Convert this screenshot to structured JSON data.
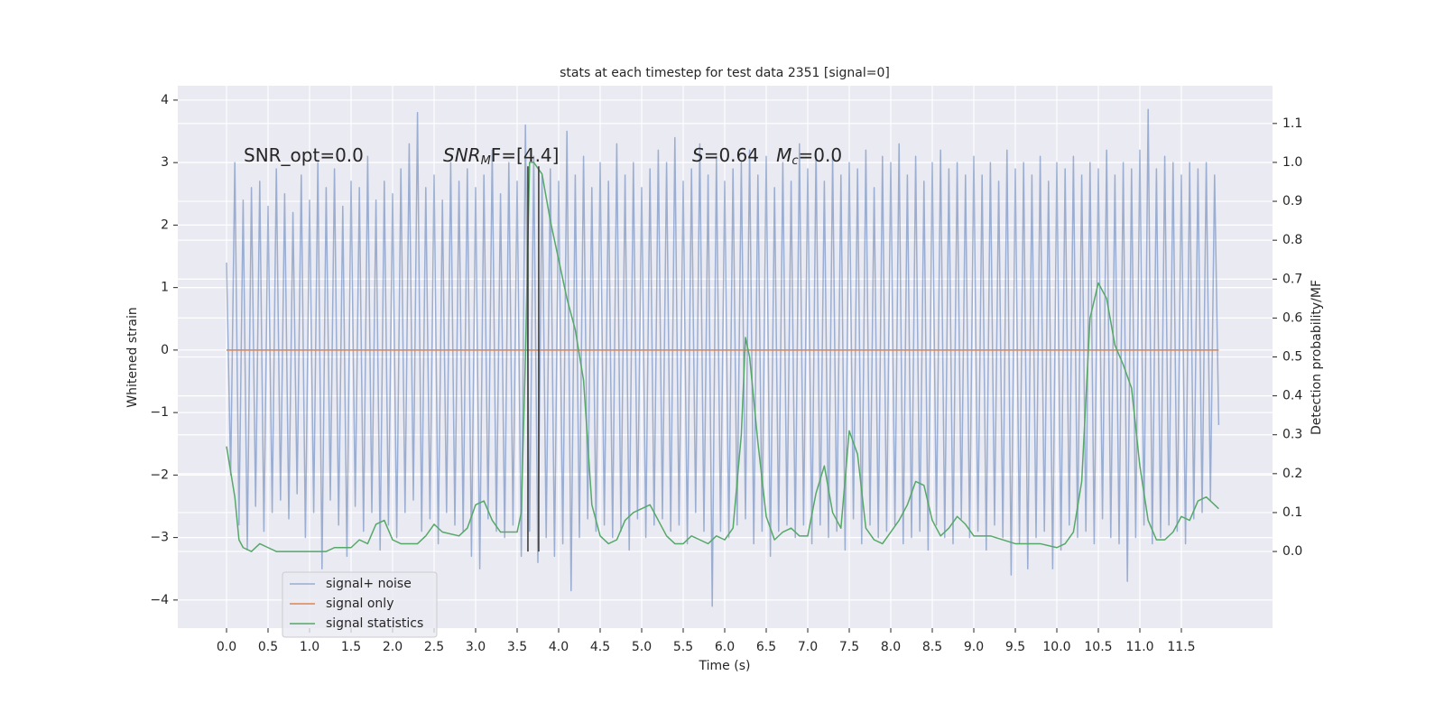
{
  "chart_data": {
    "type": "line",
    "title": "stats at each timestep for test data 2351 [signal=0]",
    "xlabel": "Time (s)",
    "ylabel": "Whitened strain",
    "y2label": "Detection probability/MF",
    "annotations": [
      [
        "SNR_opt=0.0"
      ],
      [
        "SNR",
        "M",
        "F=[4.4]"
      ],
      [
        "S",
        "=0.64   ",
        "M",
        "c",
        "=0.0"
      ]
    ],
    "xlim": [
      -0.587,
      12.598
    ],
    "ylim": [
      -4.45,
      4.23
    ],
    "y2lim": [
      -0.197,
      1.197
    ],
    "xticks": [
      {
        "value": 0,
        "label": "0.0"
      },
      0.5,
      {
        "value": 1,
        "label": "1.0"
      },
      1.5,
      {
        "value": 2,
        "label": "2.0"
      },
      2.5,
      {
        "value": 3,
        "label": "3.0"
      },
      3.5,
      {
        "value": 4,
        "label": "4.0"
      },
      4.5,
      {
        "value": 5,
        "label": "5.0"
      },
      5.5,
      {
        "value": 6,
        "label": "6.0"
      },
      6.5,
      {
        "value": 7,
        "label": "7.0"
      },
      7.5,
      {
        "value": 8,
        "label": "8.0"
      },
      8.5,
      {
        "value": 9,
        "label": "9.0"
      },
      9.5,
      {
        "value": 10,
        "label": "10.0"
      },
      10.5,
      {
        "value": 11,
        "label": "11.0"
      },
      11.5
    ],
    "yticks": [
      {
        "value": -4,
        "label": "−4"
      },
      {
        "value": -3,
        "label": "−3"
      },
      {
        "value": -2,
        "label": "−2"
      },
      {
        "value": -1,
        "label": "−1"
      },
      0,
      1,
      2,
      3,
      4
    ],
    "y2ticks": [
      {
        "value": 0,
        "label": "0.0"
      },
      0.1,
      0.2,
      0.3,
      0.4,
      0.5,
      0.6,
      0.7,
      0.8,
      0.9,
      {
        "value": 1,
        "label": "1.0"
      },
      1.1
    ],
    "grid": true,
    "legend": "lower left",
    "vlines": {
      "x": [
        3.63,
        3.76
      ],
      "y2": [
        0,
        0.99
      ],
      "color": "#333333"
    },
    "series": [
      {
        "name": "signal+ noise",
        "color": "#4c72b0",
        "alpha": 0.5,
        "x": [
          0,
          0.05,
          0.1,
          0.15,
          0.2,
          0.25,
          0.3,
          0.35,
          0.4,
          0.45,
          0.5,
          0.55,
          0.6,
          0.65,
          0.7,
          0.75,
          0.8,
          0.85,
          0.9,
          0.95,
          1,
          1.05,
          1.1,
          1.15,
          1.2,
          1.25,
          1.3,
          1.35,
          1.4,
          1.45,
          1.5,
          1.55,
          1.6,
          1.65,
          1.7,
          1.75,
          1.8,
          1.85,
          1.9,
          1.95,
          2,
          2.05,
          2.1,
          2.15,
          2.2,
          2.25,
          2.3,
          2.35,
          2.4,
          2.45,
          2.5,
          2.55,
          2.6,
          2.65,
          2.7,
          2.75,
          2.8,
          2.85,
          2.9,
          2.95,
          3,
          3.05,
          3.1,
          3.15,
          3.2,
          3.25,
          3.3,
          3.35,
          3.4,
          3.45,
          3.5,
          3.55,
          3.6,
          3.65,
          3.7,
          3.75,
          3.8,
          3.85,
          3.9,
          3.95,
          4,
          4.05,
          4.1,
          4.15,
          4.2,
          4.25,
          4.3,
          4.35,
          4.4,
          4.45,
          4.5,
          4.55,
          4.6,
          4.65,
          4.7,
          4.75,
          4.8,
          4.85,
          4.9,
          4.95,
          5,
          5.05,
          5.1,
          5.15,
          5.2,
          5.25,
          5.3,
          5.35,
          5.4,
          5.45,
          5.5,
          5.55,
          5.6,
          5.65,
          5.7,
          5.75,
          5.8,
          5.85,
          5.9,
          5.95,
          6,
          6.05,
          6.1,
          6.15,
          6.2,
          6.25,
          6.3,
          6.35,
          6.4,
          6.45,
          6.5,
          6.55,
          6.6,
          6.65,
          6.7,
          6.75,
          6.8,
          6.85,
          6.9,
          6.95,
          7,
          7.05,
          7.1,
          7.15,
          7.2,
          7.25,
          7.3,
          7.35,
          7.4,
          7.45,
          7.5,
          7.55,
          7.6,
          7.65,
          7.7,
          7.75,
          7.8,
          7.85,
          7.9,
          7.95,
          8,
          8.05,
          8.1,
          8.15,
          8.2,
          8.25,
          8.3,
          8.35,
          8.4,
          8.45,
          8.5,
          8.55,
          8.6,
          8.65,
          8.7,
          8.75,
          8.8,
          8.85,
          8.9,
          8.95,
          9,
          9.05,
          9.1,
          9.15,
          9.2,
          9.25,
          9.3,
          9.35,
          9.4,
          9.45,
          9.5,
          9.55,
          9.6,
          9.65,
          9.7,
          9.75,
          9.8,
          9.85,
          9.9,
          9.95,
          10,
          10.05,
          10.1,
          10.15,
          10.2,
          10.25,
          10.3,
          10.35,
          10.4,
          10.45,
          10.5,
          10.55,
          10.6,
          10.65,
          10.7,
          10.75,
          10.8,
          10.85,
          10.9,
          10.95,
          11,
          11.05,
          11.1,
          11.15,
          11.2,
          11.25,
          11.3,
          11.35,
          11.4,
          11.45,
          11.5,
          11.55,
          11.6,
          11.65,
          11.7,
          11.75,
          11.8,
          11.85,
          11.9,
          11.95
        ],
        "values": [
          1.4,
          -2.0,
          3.0,
          -2.8,
          2.4,
          -3.2,
          2.6,
          -2.5,
          2.7,
          -2.9,
          2.3,
          -2.6,
          2.9,
          -2.4,
          2.5,
          -2.7,
          2.2,
          -2.3,
          2.8,
          -3.0,
          2.4,
          -2.6,
          3.0,
          -3.5,
          2.6,
          -2.4,
          2.9,
          -2.8,
          2.3,
          -3.3,
          2.7,
          -2.5,
          2.6,
          -2.9,
          3.1,
          -2.6,
          2.4,
          -3.2,
          2.7,
          -2.8,
          2.5,
          -3.0,
          2.9,
          -2.6,
          3.3,
          -2.4,
          3.8,
          -2.9,
          2.6,
          -2.7,
          2.8,
          -3.1,
          2.4,
          -2.6,
          3.0,
          -2.8,
          2.7,
          -2.9,
          2.9,
          -3.3,
          2.6,
          -3.5,
          2.8,
          -2.7,
          3.2,
          -2.9,
          2.5,
          -3.0,
          3.0,
          -2.8,
          2.7,
          -3.3,
          3.6,
          -2.9,
          3.1,
          -3.4,
          2.8,
          -3.0,
          2.9,
          -3.3,
          2.7,
          -3.1,
          3.5,
          -3.85,
          2.8,
          -3.0,
          3.1,
          -2.7,
          2.6,
          -2.9,
          3.0,
          -2.8,
          2.7,
          -3.0,
          3.3,
          -2.9,
          2.8,
          -3.2,
          3.0,
          -2.7,
          2.6,
          -3.0,
          2.9,
          -2.8,
          3.2,
          -2.7,
          3.0,
          -2.9,
          3.4,
          -2.8,
          2.7,
          -3.1,
          2.9,
          -2.6,
          3.3,
          -2.9,
          2.8,
          -4.1,
          3.1,
          -2.9,
          2.7,
          -3.0,
          2.9,
          -2.8,
          3.0,
          -2.7,
          3.2,
          -3.1,
          2.8,
          -2.9,
          3.1,
          -3.3,
          2.6,
          -2.9,
          3.0,
          -2.8,
          2.7,
          -3.0,
          3.3,
          -2.8,
          2.9,
          -3.1,
          3.2,
          -2.8,
          2.7,
          -3.0,
          3.1,
          -2.9,
          2.8,
          -3.2,
          3.0,
          -2.7,
          2.9,
          -3.1,
          3.2,
          -2.8,
          2.6,
          -3.0,
          3.1,
          -2.9,
          3.0,
          -2.8,
          3.3,
          -3.1,
          2.8,
          -3.0,
          3.1,
          -2.9,
          2.7,
          -3.2,
          3.0,
          -2.8,
          3.2,
          -3.0,
          2.9,
          -3.1,
          3.0,
          -2.7,
          2.8,
          -3.0,
          3.1,
          -2.9,
          2.8,
          -3.2,
          3.0,
          -2.8,
          2.7,
          -3.0,
          3.2,
          -3.6,
          2.9,
          -3.1,
          3.0,
          -3.5,
          2.8,
          -3.0,
          3.1,
          -2.9,
          2.7,
          -3.5,
          3.0,
          -3.2,
          2.9,
          -2.8,
          3.1,
          -3.0,
          2.8,
          -2.9,
          3.0,
          -3.1,
          2.9,
          -2.7,
          3.2,
          -3.0,
          2.8,
          -3.1,
          3.0,
          -3.7,
          2.9,
          -3.0,
          3.2,
          -2.8,
          3.85,
          -3.1,
          2.9,
          -3.0,
          3.1,
          -2.8,
          3.0,
          -2.9,
          2.8,
          -3.1,
          3.0,
          -2.7,
          2.9,
          -2.6,
          3.0,
          -2.4,
          2.8,
          -1.2
        ]
      },
      {
        "name": "signal only",
        "color": "#dd8452",
        "alpha": 1,
        "x": [
          0,
          11.95
        ],
        "values": [
          0,
          0
        ]
      },
      {
        "name": "signal statistics",
        "color": "#55a868",
        "alpha": 1,
        "axis": "y2",
        "x": [
          0,
          0.1,
          0.15,
          0.2,
          0.3,
          0.4,
          0.5,
          0.6,
          0.8,
          1.0,
          1.2,
          1.3,
          1.5,
          1.6,
          1.7,
          1.8,
          1.9,
          2.0,
          2.1,
          2.3,
          2.4,
          2.5,
          2.6,
          2.8,
          2.9,
          3.0,
          3.1,
          3.2,
          3.3,
          3.5,
          3.55,
          3.6,
          3.65,
          3.7,
          3.8,
          3.9,
          4.0,
          4.1,
          4.2,
          4.3,
          4.4,
          4.5,
          4.6,
          4.7,
          4.8,
          4.9,
          5.1,
          5.2,
          5.3,
          5.4,
          5.5,
          5.6,
          5.7,
          5.8,
          5.9,
          6.0,
          6.1,
          6.2,
          6.25,
          6.3,
          6.4,
          6.5,
          6.6,
          6.7,
          6.8,
          6.9,
          7.0,
          7.1,
          7.2,
          7.3,
          7.4,
          7.5,
          7.6,
          7.7,
          7.8,
          7.9,
          8.0,
          8.1,
          8.2,
          8.3,
          8.4,
          8.5,
          8.6,
          8.7,
          8.8,
          8.9,
          9.0,
          9.2,
          9.5,
          9.8,
          10.0,
          10.1,
          10.2,
          10.3,
          10.4,
          10.5,
          10.6,
          10.7,
          10.8,
          10.9,
          11.0,
          11.1,
          11.2,
          11.3,
          11.4,
          11.5,
          11.6,
          11.7,
          11.8,
          11.9,
          11.95
        ],
        "values": [
          0.27,
          0.14,
          0.03,
          0.01,
          0.0,
          0.02,
          0.01,
          0.0,
          0.0,
          0.0,
          0.0,
          0.01,
          0.01,
          0.03,
          0.02,
          0.07,
          0.08,
          0.03,
          0.02,
          0.02,
          0.04,
          0.07,
          0.05,
          0.04,
          0.06,
          0.12,
          0.13,
          0.08,
          0.05,
          0.05,
          0.1,
          0.5,
          1.0,
          1.0,
          0.97,
          0.85,
          0.75,
          0.65,
          0.57,
          0.44,
          0.12,
          0.04,
          0.02,
          0.03,
          0.08,
          0.1,
          0.12,
          0.08,
          0.04,
          0.02,
          0.02,
          0.04,
          0.03,
          0.02,
          0.04,
          0.03,
          0.06,
          0.3,
          0.55,
          0.5,
          0.28,
          0.09,
          0.03,
          0.05,
          0.06,
          0.04,
          0.04,
          0.15,
          0.22,
          0.1,
          0.06,
          0.31,
          0.25,
          0.06,
          0.03,
          0.02,
          0.05,
          0.08,
          0.12,
          0.18,
          0.17,
          0.08,
          0.04,
          0.06,
          0.09,
          0.07,
          0.04,
          0.04,
          0.02,
          0.02,
          0.01,
          0.02,
          0.05,
          0.18,
          0.6,
          0.69,
          0.65,
          0.53,
          0.48,
          0.42,
          0.22,
          0.08,
          0.03,
          0.03,
          0.05,
          0.09,
          0.08,
          0.13,
          0.14,
          0.12,
          0.11
        ]
      }
    ]
  }
}
